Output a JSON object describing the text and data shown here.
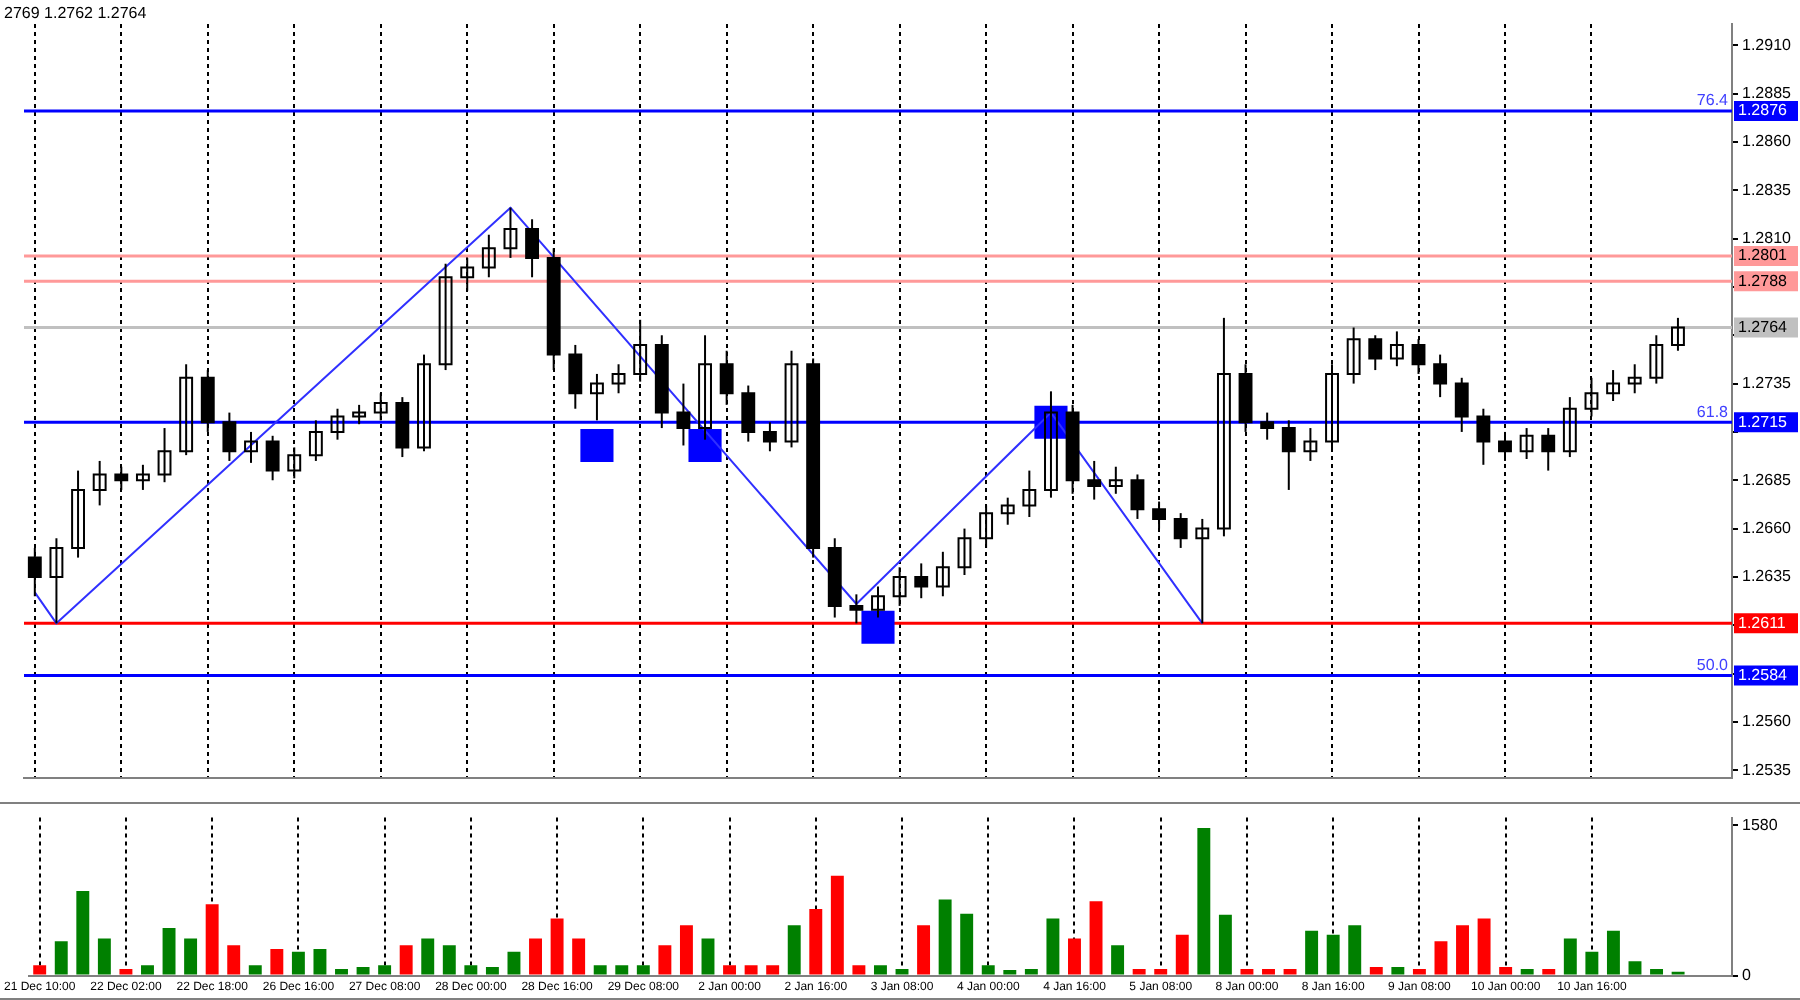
{
  "chart_data": [
    {
      "type": "candlestick",
      "annotations": [
        "2769 1.2762 1.2764",
        {
          "text": "76.4",
          "y": 1.2876
        },
        {
          "text": "61.8",
          "y": 1.2715
        },
        {
          "text": "50.0",
          "y": 1.2584
        }
      ],
      "color": "#000000",
      "categories": [
        null,
        null,
        null,
        null,
        null,
        null,
        null,
        null,
        null,
        null,
        null,
        null,
        null,
        null,
        null,
        null,
        null,
        null,
        null,
        null,
        null,
        null,
        null,
        null,
        null,
        null,
        null,
        null,
        null,
        null,
        null,
        null,
        null,
        null,
        null,
        null,
        null,
        null,
        null,
        null,
        null,
        null,
        null,
        null,
        null,
        null,
        null,
        null,
        null,
        null,
        null,
        null,
        null,
        null,
        null,
        null,
        null,
        null,
        null,
        null,
        null,
        null,
        null,
        null,
        null,
        null,
        null,
        null,
        null,
        null,
        null,
        null,
        null,
        null,
        null,
        null,
        null,
        null,
        null
      ],
      "ohlc": [
        [
          1.2645,
          1.265,
          1.2625,
          1.2635
        ],
        [
          1.2635,
          1.2655,
          1.2611,
          1.265
        ],
        [
          1.265,
          1.269,
          1.2645,
          1.268
        ],
        [
          1.268,
          1.2695,
          1.2672,
          1.2688
        ],
        [
          1.2688,
          1.2692,
          1.268,
          1.2685
        ],
        [
          1.2685,
          1.2693,
          1.268,
          1.2688
        ],
        [
          1.2688,
          1.2712,
          1.2684,
          1.27
        ],
        [
          1.27,
          1.2745,
          1.2698,
          1.2738
        ],
        [
          1.2738,
          1.2742,
          1.271,
          1.2715
        ],
        [
          1.2715,
          1.272,
          1.2695,
          1.27
        ],
        [
          1.27,
          1.271,
          1.2694,
          1.2705
        ],
        [
          1.2705,
          1.2708,
          1.2685,
          1.269
        ],
        [
          1.269,
          1.2702,
          1.2686,
          1.2698
        ],
        [
          1.2698,
          1.2716,
          1.2695,
          1.271
        ],
        [
          1.271,
          1.2722,
          1.2706,
          1.2718
        ],
        [
          1.2718,
          1.2724,
          1.2714,
          1.272
        ],
        [
          1.272,
          1.273,
          1.2716,
          1.2725
        ],
        [
          1.2725,
          1.2728,
          1.2697,
          1.2702
        ],
        [
          1.2702,
          1.275,
          1.27,
          1.2745
        ],
        [
          1.2745,
          1.2797,
          1.2742,
          1.279
        ],
        [
          1.279,
          1.28,
          1.2783,
          1.2795
        ],
        [
          1.2795,
          1.2812,
          1.279,
          1.2805
        ],
        [
          1.2805,
          1.2826,
          1.28,
          1.2815
        ],
        [
          1.2815,
          1.282,
          1.279,
          1.28
        ],
        [
          1.28,
          1.2805,
          1.2742,
          1.275
        ],
        [
          1.275,
          1.2755,
          1.2722,
          1.273
        ],
        [
          1.273,
          1.274,
          1.2716,
          1.2735
        ],
        [
          1.2735,
          1.2745,
          1.273,
          1.274
        ],
        [
          1.274,
          1.2768,
          1.2736,
          1.2755
        ],
        [
          1.2755,
          1.276,
          1.2712,
          1.272
        ],
        [
          1.272,
          1.2735,
          1.2703,
          1.2712
        ],
        [
          1.2712,
          1.276,
          1.2706,
          1.2745
        ],
        [
          1.2745,
          1.2752,
          1.2724,
          1.273
        ],
        [
          1.273,
          1.2734,
          1.2705,
          1.271
        ],
        [
          1.271,
          1.2715,
          1.27,
          1.2705
        ],
        [
          1.2705,
          1.2752,
          1.2702,
          1.2745
        ],
        [
          1.2745,
          1.2748,
          1.2645,
          1.265
        ],
        [
          1.265,
          1.2655,
          1.2614,
          1.262
        ],
        [
          1.262,
          1.2626,
          1.2611,
          1.2618
        ],
        [
          1.2618,
          1.263,
          1.2614,
          1.2625
        ],
        [
          1.2625,
          1.264,
          1.262,
          1.2635
        ],
        [
          1.2635,
          1.2642,
          1.2624,
          1.263
        ],
        [
          1.263,
          1.2648,
          1.2625,
          1.264
        ],
        [
          1.264,
          1.266,
          1.2636,
          1.2655
        ],
        [
          1.2655,
          1.2672,
          1.265,
          1.2668
        ],
        [
          1.2668,
          1.2676,
          1.2662,
          1.2672
        ],
        [
          1.2672,
          1.269,
          1.2666,
          1.268
        ],
        [
          1.268,
          1.2731,
          1.2676,
          1.272
        ],
        [
          1.272,
          1.2724,
          1.2678,
          1.2685
        ],
        [
          1.2685,
          1.2695,
          1.2675,
          1.2682
        ],
        [
          1.2682,
          1.2692,
          1.2678,
          1.2685
        ],
        [
          1.2685,
          1.2688,
          1.2665,
          1.267
        ],
        [
          1.267,
          1.2674,
          1.266,
          1.2665
        ],
        [
          1.2665,
          1.2668,
          1.265,
          1.2655
        ],
        [
          1.2655,
          1.2665,
          1.2611,
          1.266
        ],
        [
          1.266,
          1.2769,
          1.2656,
          1.274
        ],
        [
          1.274,
          1.2745,
          1.271,
          1.2715
        ],
        [
          1.2715,
          1.272,
          1.2706,
          1.2712
        ],
        [
          1.2712,
          1.2716,
          1.268,
          1.27
        ],
        [
          1.27,
          1.2712,
          1.2695,
          1.2705
        ],
        [
          1.2705,
          1.2745,
          1.27,
          1.274
        ],
        [
          1.274,
          1.2764,
          1.2735,
          1.2758
        ],
        [
          1.2758,
          1.276,
          1.2742,
          1.2748
        ],
        [
          1.2748,
          1.2762,
          1.2744,
          1.2755
        ],
        [
          1.2755,
          1.2758,
          1.274,
          1.2745
        ],
        [
          1.2745,
          1.275,
          1.2728,
          1.2735
        ],
        [
          1.2735,
          1.2738,
          1.271,
          1.2718
        ],
        [
          1.2718,
          1.2722,
          1.2693,
          1.2705
        ],
        [
          1.2705,
          1.271,
          1.2695,
          1.27
        ],
        [
          1.27,
          1.2712,
          1.2696,
          1.2708
        ],
        [
          1.2708,
          1.2712,
          1.269,
          1.27
        ],
        [
          1.27,
          1.2728,
          1.2697,
          1.2722
        ],
        [
          1.2722,
          1.2738,
          1.2718,
          1.273
        ],
        [
          1.273,
          1.2742,
          1.2726,
          1.2735
        ],
        [
          1.2735,
          1.2745,
          1.273,
          1.2738
        ],
        [
          1.2738,
          1.276,
          1.2735,
          1.2755
        ],
        [
          1.2755,
          1.2769,
          1.2752,
          1.2764
        ],
        null,
        null
      ],
      "series": [
        {
          "type": "line",
          "color": "#3030ff",
          "marker": "none",
          "values": [
            1.2627,
            1.2611,
            null,
            null,
            null,
            null,
            null,
            null,
            null,
            null,
            null,
            null,
            null,
            null,
            null,
            null,
            null,
            null,
            null,
            null,
            null,
            null,
            1.2826,
            null,
            null,
            null,
            null,
            null,
            null,
            null,
            null,
            null,
            null,
            null,
            null,
            null,
            null,
            null,
            1.2621,
            null,
            null,
            null,
            null,
            null,
            null,
            null,
            null,
            1.272,
            null,
            null,
            null,
            null,
            null,
            null,
            1.2611,
            null,
            null,
            null,
            null,
            null,
            null,
            null,
            null,
            null,
            null,
            null,
            null,
            null,
            null,
            null,
            null,
            null,
            null,
            null,
            null,
            null,
            null,
            null,
            null
          ]
        },
        {
          "type": "scatter",
          "color": "#0000ff",
          "marker": "square",
          "values": [
            null,
            null,
            null,
            null,
            null,
            null,
            null,
            null,
            null,
            null,
            null,
            null,
            null,
            null,
            null,
            null,
            null,
            null,
            null,
            null,
            null,
            null,
            null,
            null,
            null,
            null,
            1.2703,
            null,
            null,
            null,
            null,
            1.2703,
            null,
            null,
            null,
            null,
            null,
            null,
            null,
            1.2609,
            null,
            null,
            null,
            null,
            null,
            null,
            null,
            1.2715,
            null,
            null,
            null,
            null,
            null,
            null,
            null,
            null,
            null,
            null,
            null,
            null,
            null,
            null,
            null,
            null,
            null,
            null,
            null,
            null,
            null,
            null,
            null,
            null,
            null,
            null,
            null,
            null,
            null,
            null,
            null
          ]
        }
      ],
      "ylim": [
        1.2531,
        1.2921
      ],
      "yticks": [
        1.2535,
        {
          "value": 1.256,
          "label": "1.2560"
        },
        {
          "value": 1.2585,
          "label": null
        },
        {
          "value": 1.261,
          "label": null
        },
        1.2635,
        {
          "value": 1.266,
          "label": "1.2660"
        },
        1.2685,
        {
          "value": 1.271,
          "label": null
        },
        1.2735,
        {
          "value": 1.276,
          "label": null
        },
        {
          "value": 1.2785,
          "label": null
        },
        {
          "value": 1.281,
          "label": "1.2810"
        },
        1.2835,
        {
          "value": 1.286,
          "label": "1.2860"
        },
        1.2885,
        {
          "value": 1.291,
          "label": "1.2910"
        }
      ],
      "ref_lines": [
        {
          "axis": "y",
          "value": 1.2876,
          "label": "1.2876",
          "color": "#0000ff"
        },
        {
          "axis": "y",
          "value": 1.2801,
          "label": "1.2801",
          "color": "#ff9999"
        },
        {
          "axis": "y",
          "value": 1.2788,
          "label": "1.2788",
          "color": "#ff9999"
        },
        {
          "axis": "y",
          "value": 1.2764,
          "label": "1.2764",
          "color": "#c0c0c0"
        },
        {
          "axis": "y",
          "value": 1.2715,
          "label": "1.2715",
          "color": "#0000ff"
        },
        {
          "axis": "y",
          "value": 1.2611,
          "label": "1.2611",
          "color": "#ff0000"
        },
        {
          "axis": "y",
          "value": 1.2584,
          "label": "1.2584",
          "color": "#0000ff"
        }
      ],
      "grid": "x",
      "tick_labels": "y"
    },
    {
      "type": "bar",
      "categories": [
        "21 Dec 10:00",
        null,
        null,
        null,
        "22 Dec 02:00",
        null,
        null,
        null,
        "22 Dec 18:00",
        null,
        null,
        null,
        "26 Dec 16:00",
        null,
        null,
        null,
        "27 Dec 08:00",
        null,
        null,
        null,
        "28 Dec 00:00",
        null,
        null,
        null,
        "28 Dec 16:00",
        null,
        null,
        null,
        "29 Dec 08:00",
        null,
        null,
        null,
        "2 Jan 00:00",
        null,
        null,
        null,
        "2 Jan 16:00",
        null,
        null,
        null,
        "3 Jan 08:00",
        null,
        null,
        null,
        "4 Jan 00:00",
        null,
        null,
        null,
        "4 Jan 16:00",
        null,
        null,
        null,
        "5 Jan 08:00",
        null,
        null,
        null,
        "8 Jan 00:00",
        null,
        null,
        null,
        "8 Jan 16:00",
        null,
        null,
        null,
        "9 Jan 08:00",
        null,
        null,
        null,
        "10 Jan 00:00",
        null,
        null,
        null,
        "10 Jan 16:00",
        null,
        null,
        null,
        null,
        null,
        null
      ],
      "values": [
        110,
        360,
        890,
        390,
        70,
        110,
        500,
        390,
        750,
        320,
        110,
        280,
        250,
        280,
        70,
        90,
        110,
        320,
        390,
        320,
        110,
        90,
        250,
        390,
        600,
        390,
        110,
        110,
        110,
        320,
        530,
        390,
        110,
        110,
        110,
        530,
        700,
        1050,
        110,
        110,
        70,
        530,
        800,
        650,
        110,
        60,
        70,
        600,
        390,
        780,
        320,
        70,
        70,
        430,
        1550,
        640,
        70,
        70,
        70,
        470,
        430,
        530,
        90,
        90,
        70,
        360,
        530,
        600,
        90,
        70,
        70,
        390,
        250,
        470,
        150,
        70,
        40,
        null,
        null
      ],
      "colors": [
        "#ff0000",
        "#008000",
        "#008000",
        "#008000",
        "#ff0000",
        "#008000",
        "#008000",
        "#008000",
        "#ff0000",
        "#ff0000",
        "#008000",
        "#ff0000",
        "#008000",
        "#008000",
        "#008000",
        "#008000",
        "#008000",
        "#ff0000",
        "#008000",
        "#008000",
        "#008000",
        "#008000",
        "#008000",
        "#ff0000",
        "#ff0000",
        "#ff0000",
        "#008000",
        "#008000",
        "#008000",
        "#ff0000",
        "#ff0000",
        "#008000",
        "#ff0000",
        "#ff0000",
        "#ff0000",
        "#008000",
        "#ff0000",
        "#ff0000",
        "#ff0000",
        "#008000",
        "#008000",
        "#ff0000",
        "#008000",
        "#008000",
        "#008000",
        "#008000",
        "#008000",
        "#008000",
        "#ff0000",
        "#ff0000",
        "#008000",
        "#ff0000",
        "#ff0000",
        "#ff0000",
        "#008000",
        "#008000",
        "#ff0000",
        "#ff0000",
        "#ff0000",
        "#008000",
        "#008000",
        "#008000",
        "#ff0000",
        "#008000",
        "#ff0000",
        "#ff0000",
        "#ff0000",
        "#ff0000",
        "#ff0000",
        "#008000",
        "#ff0000",
        "#008000",
        "#008000",
        "#008000",
        "#008000",
        "#008000",
        "#008000",
        "#008000",
        "#008000"
      ],
      "ylim": [
        0,
        1660
      ],
      "yticks": [
        0,
        1580
      ],
      "grid": "x"
    }
  ]
}
